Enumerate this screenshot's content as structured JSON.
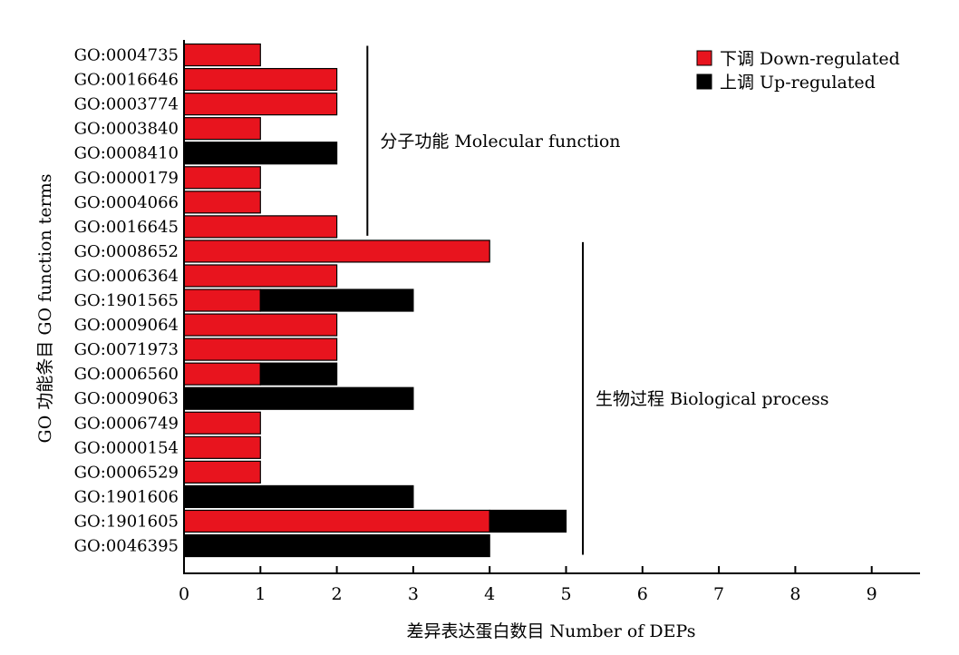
{
  "chart_data": {
    "type": "bar",
    "orientation": "horizontal",
    "stacked": true,
    "xlabel": "差异表达蛋白数目 Number of DEPs",
    "ylabel": "GO 功能条目 GO function terms",
    "xlim": [
      0,
      9.6
    ],
    "xticks": [
      "0",
      "1",
      "2",
      "3",
      "4",
      "5",
      "6",
      "7",
      "8",
      "9"
    ],
    "grid": false,
    "legend_position": "top-right",
    "categories": [
      "GO:0004735",
      "GO:0016646",
      "GO:0003774",
      "GO:0003840",
      "GO:0008410",
      "GO:0000179",
      "GO:0004066",
      "GO:0016645",
      "GO:0008652",
      "GO:0006364",
      "GO:1901565",
      "GO:0009064",
      "GO:0071973",
      "GO:0006560",
      "GO:0009063",
      "GO:0006749",
      "GO:0000154",
      "GO:0006529",
      "GO:1901606",
      "GO:1901605",
      "GO:0046395"
    ],
    "series": [
      {
        "name": "下调 Down-regulated",
        "color": "#e8141e",
        "values": [
          1,
          2,
          2,
          1,
          0,
          1,
          1,
          2,
          4,
          2,
          1,
          2,
          2,
          1,
          0,
          1,
          1,
          1,
          0,
          4,
          0
        ]
      },
      {
        "name": "上调 Up-regulated",
        "color": "#000000",
        "values": [
          0,
          0,
          0,
          0,
          2,
          0,
          0,
          0,
          0,
          0,
          2,
          0,
          0,
          1,
          3,
          0,
          0,
          0,
          3,
          1,
          4
        ]
      }
    ],
    "groups": [
      {
        "label": "分子功能 Molecular function",
        "start_category": "GO:0004735",
        "end_category": "GO:0016645",
        "bracket_x": 2.4
      },
      {
        "label": "生物过程 Biological process",
        "start_category": "GO:0008652",
        "end_category": "GO:0046395",
        "bracket_x": 5.22
      }
    ]
  }
}
